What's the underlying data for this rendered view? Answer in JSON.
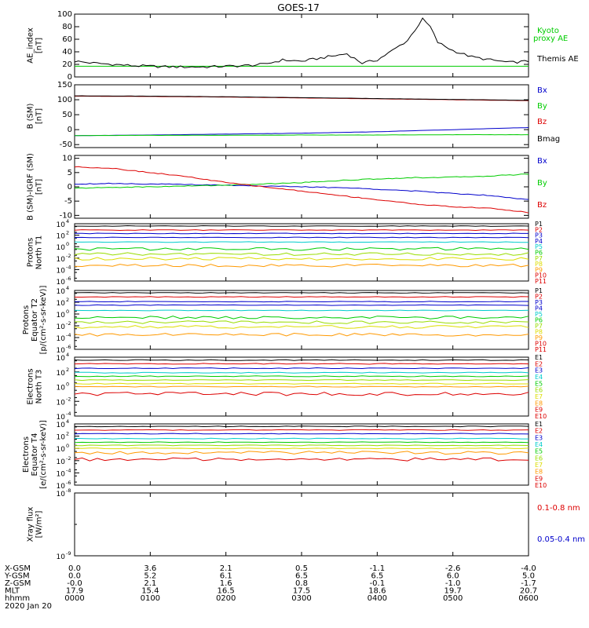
{
  "title": "GOES-17",
  "date_label": "2020 Jan 20",
  "colors": {
    "axis": "#000000",
    "red": "#dd0000",
    "green": "#00cc00",
    "blue": "#0000cc",
    "cyan": "#00cccc",
    "yellow": "#dddd00",
    "orange": "#ff9900",
    "lime": "#99dd00"
  },
  "footer": {
    "row_labels": [
      "X-GSM",
      "Y-GSM",
      "Z-GSM",
      "MLT",
      "hhmm"
    ],
    "columns": [
      [
        "0.0",
        "0.0",
        "-0.0",
        "17.9",
        "0000"
      ],
      [
        "3.6",
        "5.2",
        "2.1",
        "15.4",
        "0100"
      ],
      [
        "2.1",
        "6.1",
        "1.6",
        "16.5",
        "0200"
      ],
      [
        "0.5",
        "6.5",
        "0.8",
        "17.5",
        "0300"
      ],
      [
        "-1.1",
        "6.5",
        "-0.1",
        "18.6",
        "0400"
      ],
      [
        "-2.6",
        "6.0",
        "-1.0",
        "19.7",
        "0500"
      ],
      [
        "-4.0",
        "5.0",
        "-1.7",
        "20.7",
        "0600"
      ]
    ]
  },
  "chart_data": [
    {
      "type": "line",
      "panel": "ae",
      "ylabel": [
        "AE_index",
        "[nT]"
      ],
      "ylim": [
        0,
        100
      ],
      "yticks": [
        "0",
        "20",
        "40",
        "60",
        "80",
        "100"
      ],
      "x_hours": [
        0,
        0.25,
        0.5,
        0.75,
        1,
        1.25,
        1.5,
        1.75,
        2,
        2.25,
        2.5,
        2.75,
        3,
        3.2,
        3.4,
        3.6,
        3.8,
        4,
        4.2,
        4.4,
        4.5,
        4.6,
        4.7,
        4.8,
        5,
        5.25,
        5.5,
        5.75,
        6
      ],
      "series": [
        {
          "name": "Kyoto proxy AE",
          "color_key": "green",
          "values": [
            17,
            17,
            17,
            17,
            17,
            17,
            17,
            17,
            17,
            17,
            17,
            17,
            17,
            17,
            17,
            17,
            17,
            17,
            17,
            17,
            17,
            17,
            17,
            17,
            17,
            17,
            17,
            17,
            17
          ]
        },
        {
          "name": "Themis AE",
          "color_key": "axis",
          "values": [
            25,
            22,
            20,
            18,
            17,
            16,
            16,
            16,
            17,
            18,
            20,
            27,
            25,
            29,
            33,
            37,
            22,
            27,
            42,
            58,
            75,
            92,
            80,
            55,
            42,
            32,
            27,
            23,
            25
          ]
        }
      ],
      "legend": [
        "Kyoto proxy AE",
        "Themis AE"
      ]
    },
    {
      "type": "line",
      "panel": "bsm",
      "ylabel": [
        "B (SM)",
        "[nT]"
      ],
      "ylim": [
        -60,
        150
      ],
      "yticks": [
        "-50",
        "0",
        "50",
        "100",
        "150"
      ],
      "ytick_values": [
        -50,
        0,
        50,
        100,
        150
      ],
      "x_hours": [
        0,
        1,
        2,
        3,
        4,
        5,
        6
      ],
      "series": [
        {
          "name": "Bx",
          "color_key": "blue",
          "values": [
            -20,
            -18,
            -15,
            -12,
            -7,
            0,
            7
          ]
        },
        {
          "name": "By",
          "color_key": "green",
          "values": [
            -20,
            -19,
            -19,
            -18,
            -18,
            -17,
            -17
          ]
        },
        {
          "name": "Bz",
          "color_key": "red",
          "values": [
            112,
            111,
            109,
            106,
            103,
            100,
            97
          ]
        },
        {
          "name": "Bmag",
          "color_key": "axis",
          "values": [
            113,
            112,
            110,
            107,
            104,
            101,
            98
          ]
        }
      ],
      "legend": [
        "Bx",
        "By",
        "Bz",
        "Bmag"
      ]
    },
    {
      "type": "line",
      "panel": "bigrf",
      "ylabel": [
        "B (SM)-IGRF (SM)",
        "[nT]"
      ],
      "ylim": [
        -11,
        11
      ],
      "yticks": [
        "-10",
        "-5",
        "0",
        "5",
        "10"
      ],
      "ytick_values": [
        -10,
        -5,
        0,
        5,
        10
      ],
      "x_hours": [
        0,
        0.5,
        1,
        1.5,
        2,
        2.5,
        3,
        3.5,
        4,
        4.5,
        5,
        5.5,
        6
      ],
      "series": [
        {
          "name": "Bx",
          "color_key": "blue",
          "values": [
            1.0,
            1.2,
            1.0,
            0.8,
            0.6,
            0.3,
            0.0,
            -0.3,
            -0.8,
            -1.5,
            -2.3,
            -3.0,
            -4.5
          ]
        },
        {
          "name": "By",
          "color_key": "green",
          "values": [
            -0.5,
            -0.2,
            0.0,
            0.3,
            0.6,
            1.0,
            1.5,
            2.2,
            2.8,
            3.2,
            3.4,
            3.8,
            4.5
          ]
        },
        {
          "name": "Bz",
          "color_key": "red",
          "values": [
            7.0,
            6.5,
            5.0,
            3.5,
            1.5,
            0.0,
            -1.5,
            -3.0,
            -4.5,
            -6.0,
            -7.0,
            -7.5,
            -9.0
          ]
        }
      ],
      "legend": [
        "Bx",
        "By",
        "Bz"
      ]
    },
    {
      "type": "line",
      "panel": "pn",
      "ylabel": [
        "Protons",
        "North T1"
      ],
      "ylog": true,
      "ylim_exp": [
        -6,
        4
      ],
      "ytick_exps": [
        4,
        2,
        0,
        -2,
        -4,
        -6
      ],
      "series": [
        {
          "name": "P1",
          "color_key": "axis",
          "value_exp": 3.6
        },
        {
          "name": "P2",
          "color_key": "red",
          "value_exp": 2.9
        },
        {
          "name": "P3",
          "color_key": "blue",
          "value_exp": 2.3
        },
        {
          "name": "P4",
          "color_key": "blue",
          "value_exp": 1.6
        },
        {
          "name": "P5",
          "color_key": "cyan",
          "value_exp": 0.8
        },
        {
          "name": "P6",
          "color_key": "green",
          "value_exp": -0.4
        },
        {
          "name": "P7",
          "color_key": "lime",
          "value_exp": -1.3
        },
        {
          "name": "P8",
          "color_key": "yellow",
          "value_exp": -2.1
        },
        {
          "name": "P9",
          "color_key": "orange",
          "value_exp": -3.3
        }
      ],
      "legend": [
        "P1",
        "P2",
        "P3",
        "P4",
        "P5",
        "P6",
        "P7",
        "P8",
        "P9",
        "P10",
        "P11"
      ]
    },
    {
      "type": "line",
      "panel": "pe",
      "ylabel": [
        "Protons",
        "Equator T2",
        "[p/(cm²-s-sr-keV)]"
      ],
      "ylog": true,
      "ylim_exp": [
        -6,
        4
      ],
      "ytick_exps": [
        4,
        2,
        0,
        -2,
        -4,
        -6
      ],
      "series": [
        {
          "name": "P1",
          "color_key": "axis",
          "value_exp": 3.6
        },
        {
          "name": "P2",
          "color_key": "red",
          "value_exp": 2.9
        },
        {
          "name": "P3",
          "color_key": "blue",
          "value_exp": 2.1
        },
        {
          "name": "P4",
          "color_key": "blue",
          "value_exp": 1.5
        },
        {
          "name": "P5",
          "color_key": "cyan",
          "value_exp": 0.6
        },
        {
          "name": "P6",
          "color_key": "green",
          "value_exp": -0.6
        },
        {
          "name": "P7",
          "color_key": "lime",
          "value_exp": -1.4
        },
        {
          "name": "P8",
          "color_key": "yellow",
          "value_exp": -2.2
        },
        {
          "name": "P9",
          "color_key": "orange",
          "value_exp": -3.5
        }
      ],
      "legend": [
        "P1",
        "P2",
        "P3",
        "P4",
        "P5",
        "P6",
        "P7",
        "P8",
        "P9",
        "P10",
        "P11"
      ]
    },
    {
      "type": "line",
      "panel": "en",
      "ylabel": [
        "Electrons",
        "North T3"
      ],
      "ylog": true,
      "ylim_exp": [
        -4,
        4
      ],
      "ytick_exps": [
        4,
        2,
        0,
        -2,
        -4
      ],
      "series": [
        {
          "name": "E1",
          "color_key": "axis",
          "value_exp": 3.6
        },
        {
          "name": "E2",
          "color_key": "red",
          "value_exp": 3.1
        },
        {
          "name": "E3",
          "color_key": "blue",
          "value_exp": 2.5
        },
        {
          "name": "E4",
          "color_key": "cyan",
          "value_exp": 1.9
        },
        {
          "name": "E5",
          "color_key": "green",
          "value_exp": 1.4
        },
        {
          "name": "E6",
          "color_key": "lime",
          "value_exp": 0.9
        },
        {
          "name": "E7",
          "color_key": "yellow",
          "value_exp": 0.4
        },
        {
          "name": "E8",
          "color_key": "orange",
          "value_exp": 0.0
        },
        {
          "name": "E9",
          "color_key": "red",
          "value_exp": -1.0
        }
      ],
      "legend": [
        "E1",
        "E2",
        "E3",
        "E4",
        "E5",
        "E6",
        "E7",
        "E8",
        "E9",
        "E10"
      ]
    },
    {
      "type": "line",
      "panel": "ee",
      "ylabel": [
        "Electrons",
        "Equator T4",
        "[e/(cm²-s-sr-keV)]"
      ],
      "ylog": true,
      "ylim_exp": [
        -6,
        4
      ],
      "ytick_exps": [
        4,
        2,
        0,
        -2,
        -4,
        -6
      ],
      "series": [
        {
          "name": "E1",
          "color_key": "axis",
          "value_exp": 3.6
        },
        {
          "name": "E2",
          "color_key": "red",
          "value_exp": 3.0
        },
        {
          "name": "E3",
          "color_key": "blue",
          "value_exp": 2.4
        },
        {
          "name": "E4",
          "color_key": "cyan",
          "value_exp": 1.6
        },
        {
          "name": "E5",
          "color_key": "green",
          "value_exp": 1.0
        },
        {
          "name": "E6",
          "color_key": "lime",
          "value_exp": 0.5
        },
        {
          "name": "E7",
          "color_key": "yellow",
          "value_exp": 0.0
        },
        {
          "name": "E8",
          "color_key": "orange",
          "value_exp": -0.7
        },
        {
          "name": "E9",
          "color_key": "red",
          "value_exp": -1.8
        }
      ],
      "legend": [
        "E1",
        "E2",
        "E3",
        "E4",
        "E5",
        "E6",
        "E7",
        "E8",
        "E9",
        "E10"
      ]
    },
    {
      "type": "line",
      "panel": "xray",
      "ylabel": [
        "Xray flux",
        "[W/m²]"
      ],
      "ylog": true,
      "ylim_exp": [
        -9,
        -8
      ],
      "ytick_exps": [
        -8,
        -9
      ],
      "series": [],
      "legend": [
        "0.1-0.8 nm",
        "0.05-0.4 nm"
      ]
    }
  ]
}
